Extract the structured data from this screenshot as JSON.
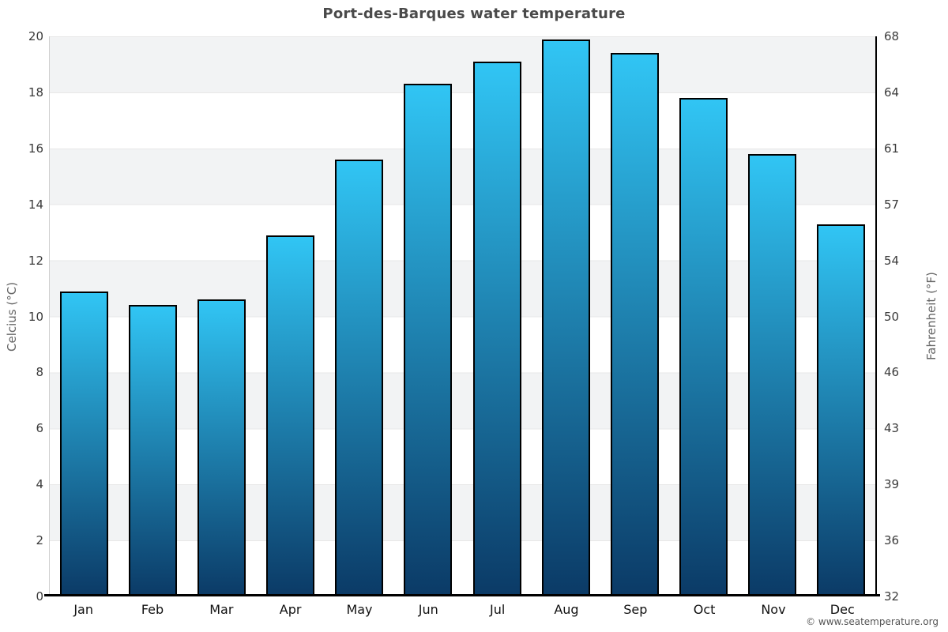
{
  "header": {
    "title": "Port-des-Barques water temperature"
  },
  "chart_data": {
    "type": "bar",
    "title": "Port-des-Barques water temperature",
    "categories": [
      "Jan",
      "Feb",
      "Mar",
      "Apr",
      "May",
      "Jun",
      "Jul",
      "Aug",
      "Sep",
      "Oct",
      "Nov",
      "Dec"
    ],
    "values": [
      10.9,
      10.4,
      10.6,
      12.9,
      15.6,
      18.3,
      19.1,
      19.9,
      19.4,
      17.8,
      15.8,
      13.3
    ],
    "unit": "°C",
    "ylabel_left": "Celcius (°C)",
    "ylabel_right": "Fahrenheit (°F)",
    "ylim_c": [
      0,
      20
    ],
    "yticks_c": [
      0,
      2,
      4,
      6,
      8,
      10,
      12,
      14,
      16,
      18,
      20
    ],
    "yticks_f": [
      32,
      36,
      39,
      43,
      46,
      50,
      54,
      57,
      61,
      64,
      68
    ],
    "grid": "horizontal-bands",
    "legend": "none",
    "colors": {
      "bar_top": "#31c5f4",
      "bar_bottom": "#0b3a66",
      "bar_border": "#000000",
      "band_gray": "#f2f3f4",
      "band_white": "#ffffff",
      "gridline": "#e7e7e7",
      "axis_bottom": "#000000",
      "title_text": "#4a4a4a"
    }
  },
  "footer": {
    "copyright": "© www.seatemperature.org"
  }
}
